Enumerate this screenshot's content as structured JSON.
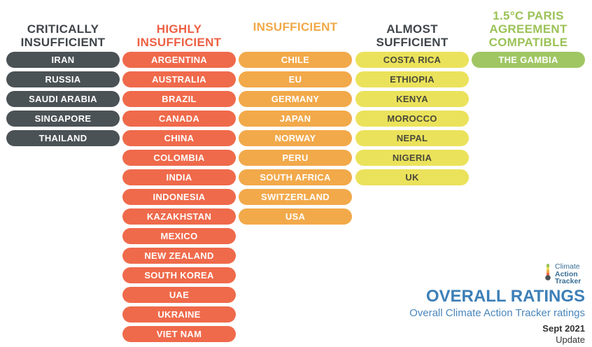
{
  "columns": [
    {
      "header": "CRITICALLY INSUFFICIENT",
      "header_color": "#3f4549",
      "pill_bg": "#4b5256",
      "pill_fg": "#ffffff",
      "countries": [
        "IRAN",
        "RUSSIA",
        "SAUDI ARABIA",
        "SINGAPORE",
        "THAILAND"
      ]
    },
    {
      "header": "HIGHLY INSUFFICIENT",
      "header_color": "#ee6044",
      "pill_bg": "#ef6a4b",
      "pill_fg": "#ffffff",
      "countries": [
        "ARGENTINA",
        "AUSTRALIA",
        "BRAZIL",
        "CANADA",
        "CHINA",
        "COLOMBIA",
        "INDIA",
        "INDONESIA",
        "KAZAKHSTAN",
        "MEXICO",
        "NEW ZEALAND",
        "SOUTH KOREA",
        "UAE",
        "UKRAINE",
        "VIET NAM"
      ]
    },
    {
      "header": "INSUFFICIENT",
      "header_color": "#f1a846",
      "pill_bg": "#f2a94a",
      "pill_fg": "#ffffff",
      "countries": [
        "CHILE",
        "EU",
        "GERMANY",
        "JAPAN",
        "NORWAY",
        "PERU",
        "SOUTH AFRICA",
        "SWITZERLAND",
        "USA"
      ]
    },
    {
      "header": "ALMOST SUFFICIENT",
      "header_color": "#3f4549",
      "pill_bg": "#ebe25b",
      "pill_fg": "#4a4a3a",
      "countries": [
        "COSTA RICA",
        "ETHIOPIA",
        "KENYA",
        "MOROCCO",
        "NEPAL",
        "NIGERIA",
        "UK"
      ]
    },
    {
      "header": "1.5°C PARIS AGREEMENT COMPATIBLE",
      "header_color": "#9bc257",
      "pill_bg": "#a0c664",
      "pill_fg": "#ffffff",
      "countries": [
        "THE GAMBIA"
      ]
    }
  ],
  "logo": {
    "line1": "Climate",
    "line2": "Action",
    "line3": "Tracker",
    "icon": "thermometer-icon"
  },
  "footer": {
    "title": "OVERALL RATINGS",
    "subtitle": "Overall Climate Action Tracker ratings",
    "date": "Sept 2021",
    "update": "Update"
  }
}
